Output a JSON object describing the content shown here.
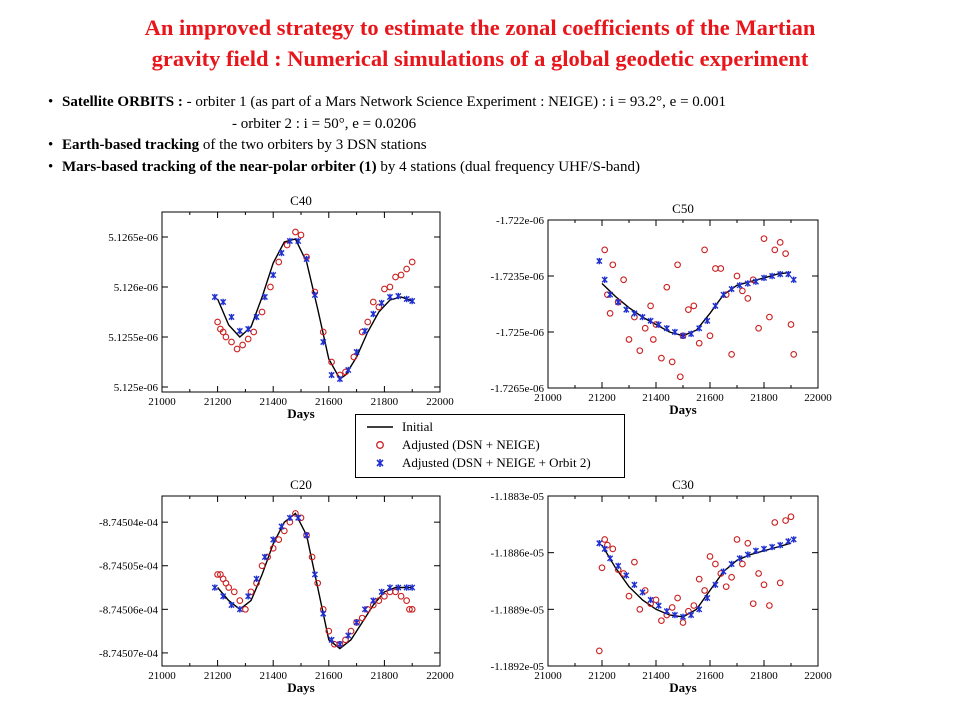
{
  "title": {
    "line1": "An improved strategy to estimate the zonal coefficients of the Martian",
    "line2": "gravity field : Numerical simulations of a global geodetic experiment"
  },
  "bullets": {
    "b1_bold": "Satellite ORBITS : ",
    "b1_text": "- orbiter 1 (as part of a Mars Network Science Experiment : NEIGE) : i = 93.2°, e = 0.001",
    "b1_line2": "- orbiter 2 : i  = 50°, e = 0.0206",
    "b2_bold": "Earth-based tracking",
    "b2_text": " of the two orbiters by 3 DSN stations",
    "b3_bold": "Mars-based tracking of the near-polar orbiter (1)",
    "b3_text": " by 4 stations (dual frequency UHF/S-band)"
  },
  "legend": {
    "initial": "Initial",
    "adjusted1": "Adjusted (DSN + NEIGE)",
    "adjusted2": "Adjusted (DSN + NEIGE + Orbit 2)"
  },
  "colors": {
    "title": "#e8151b",
    "initial": "#000000",
    "adjusted1": "#cc1f1f",
    "adjusted2": "#1f2fd0"
  },
  "chart_data": [
    {
      "type": "scatter",
      "title": "C40",
      "xlabel": "Days",
      "xlim": [
        21000,
        22000
      ],
      "xticks": [
        "21000",
        "21200",
        "21400",
        "21600",
        "21800",
        "22000"
      ],
      "ylim": [
        5.12495e-06,
        5.12675e-06
      ],
      "yticks": [
        {
          "v": 5.1265e-06,
          "label": "5.1265e-06"
        },
        {
          "v": 5.126e-06,
          "label": "5.126e-06"
        },
        {
          "v": 5.1255e-06,
          "label": "5.1255e-06"
        },
        {
          "v": 5.125e-06,
          "label": "5.125e-06"
        }
      ],
      "series": [
        {
          "name": "Initial",
          "style": "line",
          "x": [
            21200,
            21240,
            21280,
            21320,
            21360,
            21400,
            21440,
            21480,
            21520,
            21560,
            21600,
            21640,
            21660,
            21700,
            21740,
            21780,
            21820,
            21860,
            21900
          ],
          "y": [
            5.12588e-06,
            5.12562e-06,
            5.1255e-06,
            5.1256e-06,
            5.1259e-06,
            5.12624e-06,
            5.12645e-06,
            5.12648e-06,
            5.12625e-06,
            5.12578e-06,
            5.12528e-06,
            5.12508e-06,
            5.12512e-06,
            5.1253e-06,
            5.12555e-06,
            5.12575e-06,
            5.12587e-06,
            5.1259e-06,
            5.12586e-06
          ]
        },
        {
          "name": "Adjusted (DSN + NEIGE)",
          "style": "circle",
          "x": [
            21200,
            21210,
            21220,
            21230,
            21250,
            21270,
            21290,
            21310,
            21330,
            21360,
            21390,
            21420,
            21450,
            21480,
            21500,
            21520,
            21550,
            21580,
            21610,
            21640,
            21660,
            21690,
            21720,
            21740,
            21760,
            21780,
            21800,
            21820,
            21840,
            21860,
            21880,
            21900
          ],
          "y": [
            5.12565e-06,
            5.12558e-06,
            5.12555e-06,
            5.1255e-06,
            5.12545e-06,
            5.12538e-06,
            5.12542e-06,
            5.12548e-06,
            5.12555e-06,
            5.12575e-06,
            5.126e-06,
            5.12625e-06,
            5.12642e-06,
            5.12655e-06,
            5.12652e-06,
            5.1263e-06,
            5.12595e-06,
            5.12555e-06,
            5.12525e-06,
            5.12512e-06,
            5.12515e-06,
            5.1253e-06,
            5.12555e-06,
            5.12565e-06,
            5.12585e-06,
            5.1258e-06,
            5.12598e-06,
            5.126e-06,
            5.1261e-06,
            5.12612e-06,
            5.12618e-06,
            5.12625e-06
          ]
        },
        {
          "name": "Adjusted (DSN + NEIGE + Orbit 2)",
          "style": "star",
          "x": [
            21190,
            21220,
            21250,
            21280,
            21310,
            21340,
            21370,
            21400,
            21430,
            21460,
            21490,
            21520,
            21550,
            21580,
            21610,
            21640,
            21670,
            21700,
            21730,
            21760,
            21790,
            21820,
            21850,
            21880,
            21900
          ],
          "y": [
            5.1259e-06,
            5.12585e-06,
            5.1257e-06,
            5.12556e-06,
            5.12558e-06,
            5.1257e-06,
            5.1259e-06,
            5.12612e-06,
            5.12634e-06,
            5.12646e-06,
            5.12646e-06,
            5.12628e-06,
            5.12592e-06,
            5.12545e-06,
            5.12512e-06,
            5.12508e-06,
            5.12517e-06,
            5.12535e-06,
            5.12556e-06,
            5.12573e-06,
            5.12584e-06,
            5.1259e-06,
            5.12591e-06,
            5.12588e-06,
            5.12586e-06
          ]
        }
      ]
    },
    {
      "type": "scatter",
      "title": "C50",
      "xlabel": "Days",
      "xlim": [
        21000,
        22000
      ],
      "xticks": [
        "21000",
        "21200",
        "21400",
        "21600",
        "21800",
        "22000"
      ],
      "ylim": [
        -1.7265e-06,
        -1.722e-06
      ],
      "yticks": [
        {
          "v": -1.722e-06,
          "label": "-1.722e-06"
        },
        {
          "v": -1.7235e-06,
          "label": "-1.7235e-06"
        },
        {
          "v": -1.725e-06,
          "label": "-1.725e-06"
        },
        {
          "v": -1.7265e-06,
          "label": "-1.7265e-06"
        }
      ],
      "series": [
        {
          "name": "Initial",
          "style": "line",
          "x": [
            21200,
            21250,
            21300,
            21350,
            21400,
            21450,
            21500,
            21550,
            21600,
            21650,
            21700,
            21750,
            21800,
            21850,
            21900
          ],
          "y": [
            -1.7237e-06,
            -1.72405e-06,
            -1.72435e-06,
            -1.7246e-06,
            -1.7248e-06,
            -1.725e-06,
            -1.7251e-06,
            -1.72495e-06,
            -1.7245e-06,
            -1.724e-06,
            -1.72375e-06,
            -1.72365e-06,
            -1.72355e-06,
            -1.72345e-06,
            -1.7234e-06
          ]
        },
        {
          "name": "Adjusted (DSN + NEIGE)",
          "style": "circle",
          "x": [
            21210,
            21220,
            21230,
            21240,
            21260,
            21280,
            21300,
            21320,
            21340,
            21360,
            21380,
            21390,
            21400,
            21420,
            21440,
            21460,
            21480,
            21490,
            21500,
            21520,
            21540,
            21560,
            21580,
            21600,
            21620,
            21640,
            21660,
            21680,
            21700,
            21720,
            21740,
            21760,
            21780,
            21800,
            21820,
            21840,
            21860,
            21880,
            21900,
            21910
          ],
          "y": [
            -1.7228e-06,
            -1.724e-06,
            -1.7245e-06,
            -1.7232e-06,
            -1.7242e-06,
            -1.7236e-06,
            -1.7252e-06,
            -1.7246e-06,
            -1.7255e-06,
            -1.7249e-06,
            -1.7243e-06,
            -1.7252e-06,
            -1.7248e-06,
            -1.7257e-06,
            -1.7238e-06,
            -1.7258e-06,
            -1.7232e-06,
            -1.7262e-06,
            -1.7251e-06,
            -1.7244e-06,
            -1.7243e-06,
            -1.7253e-06,
            -1.7228e-06,
            -1.7251e-06,
            -1.7233e-06,
            -1.7233e-06,
            -1.724e-06,
            -1.7256e-06,
            -1.7235e-06,
            -1.7239e-06,
            -1.7241e-06,
            -1.7236e-06,
            -1.7249e-06,
            -1.7225e-06,
            -1.7246e-06,
            -1.7228e-06,
            -1.7226e-06,
            -1.7229e-06,
            -1.7248e-06,
            -1.7256e-06
          ]
        },
        {
          "name": "Adjusted (DSN + NEIGE + Orbit 2)",
          "style": "star",
          "x": [
            21190,
            21210,
            21230,
            21260,
            21290,
            21320,
            21350,
            21380,
            21410,
            21440,
            21470,
            21500,
            21530,
            21560,
            21590,
            21620,
            21650,
            21680,
            21710,
            21740,
            21770,
            21800,
            21830,
            21860,
            21890,
            21910
          ],
          "y": [
            -1.7231e-06,
            -1.7236e-06,
            -1.724e-06,
            -1.7242e-06,
            -1.7244e-06,
            -1.7245e-06,
            -1.7246e-06,
            -1.7247e-06,
            -1.7248e-06,
            -1.7249e-06,
            -1.725e-06,
            -1.7251e-06,
            -1.72505e-06,
            -1.7249e-06,
            -1.7247e-06,
            -1.7243e-06,
            -1.724e-06,
            -1.72385e-06,
            -1.72375e-06,
            -1.7237e-06,
            -1.72365e-06,
            -1.72355e-06,
            -1.7235e-06,
            -1.72345e-06,
            -1.72345e-06,
            -1.7236e-06
          ]
        }
      ]
    },
    {
      "type": "scatter",
      "title": "C20",
      "xlabel": "Days",
      "xlim": [
        21000,
        22000
      ],
      "xticks": [
        "21000",
        "21200",
        "21400",
        "21600",
        "21800",
        "22000"
      ],
      "ylim": [
        -0.0008745073,
        -0.0008745034
      ],
      "yticks": [
        {
          "v": -0.000874504,
          "label": "-8.74504e-04"
        },
        {
          "v": -0.000874505,
          "label": "-8.74505e-04"
        },
        {
          "v": -0.000874506,
          "label": "-8.74506e-04"
        },
        {
          "v": -0.000874507,
          "label": "-8.74507e-04"
        }
      ],
      "series": [
        {
          "name": "Initial",
          "style": "line",
          "x": [
            21200,
            21240,
            21280,
            21320,
            21360,
            21400,
            21440,
            21480,
            21520,
            21560,
            21600,
            21640,
            21680,
            21720,
            21760,
            21800,
            21840,
            21880,
            21900
          ],
          "y": [
            -0.0008745055,
            -0.0008745058,
            -0.000874506,
            -0.0008745058,
            -0.0008745052,
            -0.0008745045,
            -0.000874504,
            -0.0008745038,
            -0.0008745043,
            -0.0008745055,
            -0.0008745067,
            -0.0008745069,
            -0.0008745067,
            -0.0008745063,
            -0.0008745059,
            -0.0008745056,
            -0.0008745055,
            -0.0008745055,
            -0.0008745055
          ]
        },
        {
          "name": "Adjusted (DSN + NEIGE)",
          "style": "circle",
          "x": [
            21200,
            21210,
            21220,
            21230,
            21240,
            21260,
            21280,
            21300,
            21320,
            21340,
            21360,
            21380,
            21400,
            21420,
            21440,
            21460,
            21480,
            21500,
            21520,
            21540,
            21560,
            21580,
            21600,
            21620,
            21640,
            21660,
            21680,
            21700,
            21720,
            21740,
            21760,
            21780,
            21800,
            21820,
            21840,
            21860,
            21880,
            21890,
            21900
          ],
          "y": [
            -0.0008745052,
            -0.0008745052,
            -0.0008745053,
            -0.0008745054,
            -0.0008745055,
            -0.0008745056,
            -0.0008745058,
            -0.000874506,
            -0.0008745056,
            -0.0008745054,
            -0.000874505,
            -0.0008745048,
            -0.0008745046,
            -0.0008745044,
            -0.0008745042,
            -0.000874504,
            -0.0008745038,
            -0.0008745039,
            -0.0008745043,
            -0.0008745048,
            -0.0008745054,
            -0.000874506,
            -0.0008745065,
            -0.0008745068,
            -0.0008745068,
            -0.0008745067,
            -0.0008745065,
            -0.0008745063,
            -0.0008745062,
            -0.000874506,
            -0.0008745059,
            -0.0008745058,
            -0.0008745057,
            -0.0008745056,
            -0.0008745056,
            -0.0008745057,
            -0.0008745058,
            -0.000874506,
            -0.000874506
          ]
        },
        {
          "name": "Adjusted (DSN + NEIGE + Orbit 2)",
          "style": "star",
          "x": [
            21190,
            21220,
            21250,
            21280,
            21310,
            21340,
            21370,
            21400,
            21430,
            21460,
            21490,
            21520,
            21550,
            21580,
            21610,
            21640,
            21670,
            21700,
            21730,
            21760,
            21790,
            21820,
            21850,
            21880,
            21900
          ],
          "y": [
            -0.0008745055,
            -0.0008745057,
            -0.0008745059,
            -0.000874506,
            -0.0008745057,
            -0.0008745053,
            -0.0008745048,
            -0.0008745044,
            -0.0008745041,
            -0.0008745039,
            -0.0008745039,
            -0.0008745043,
            -0.0008745052,
            -0.0008745061,
            -0.0008745067,
            -0.0008745068,
            -0.0008745066,
            -0.0008745063,
            -0.000874506,
            -0.0008745058,
            -0.0008745056,
            -0.0008745055,
            -0.0008745055,
            -0.0008745055,
            -0.0008745055
          ]
        }
      ]
    },
    {
      "type": "scatter",
      "title": "C30",
      "xlabel": "Days",
      "xlim": [
        21000,
        22000
      ],
      "xticks": [
        "21000",
        "21200",
        "21400",
        "21600",
        "21800",
        "22000"
      ],
      "ylim": [
        -1.1892e-05,
        -1.1883e-05
      ],
      "yticks": [
        {
          "v": -1.1883e-05,
          "label": "-1.1883e-05"
        },
        {
          "v": -1.1886e-05,
          "label": "-1.1886e-05"
        },
        {
          "v": -1.1889e-05,
          "label": "-1.1889e-05"
        },
        {
          "v": -1.1892e-05,
          "label": "-1.1892e-05"
        }
      ],
      "series": [
        {
          "name": "Initial",
          "style": "line",
          "x": [
            21200,
            21250,
            21300,
            21350,
            21400,
            21450,
            21500,
            21550,
            21600,
            21650,
            21700,
            21750,
            21800,
            21850,
            21900
          ],
          "y": [
            -1.18856e-05,
            -1.18868e-05,
            -1.18878e-05,
            -1.18885e-05,
            -1.1889e-05,
            -1.18893e-05,
            -1.18894e-05,
            -1.1889e-05,
            -1.1888e-05,
            -1.1887e-05,
            -1.18864e-05,
            -1.18861e-05,
            -1.18859e-05,
            -1.18857e-05,
            -1.18855e-05
          ]
        },
        {
          "name": "Adjusted (DSN + NEIGE)",
          "style": "circle",
          "x": [
            21190,
            21200,
            21210,
            21220,
            21240,
            21260,
            21280,
            21300,
            21320,
            21340,
            21360,
            21380,
            21400,
            21420,
            21440,
            21460,
            21480,
            21500,
            21520,
            21540,
            21560,
            21580,
            21600,
            21620,
            21640,
            21660,
            21680,
            21700,
            21720,
            21740,
            21760,
            21780,
            21800,
            21820,
            21840,
            21860,
            21880,
            21900
          ],
          "y": [
            -1.18912e-05,
            -1.18868e-05,
            -1.18853e-05,
            -1.18856e-05,
            -1.18858e-05,
            -1.18869e-05,
            -1.18871e-05,
            -1.18883e-05,
            -1.18865e-05,
            -1.1889e-05,
            -1.1888e-05,
            -1.18887e-05,
            -1.18885e-05,
            -1.18896e-05,
            -1.18893e-05,
            -1.18889e-05,
            -1.18884e-05,
            -1.18897e-05,
            -1.18891e-05,
            -1.18888e-05,
            -1.18874e-05,
            -1.1888e-05,
            -1.18862e-05,
            -1.18866e-05,
            -1.18871e-05,
            -1.18878e-05,
            -1.18873e-05,
            -1.18853e-05,
            -1.18866e-05,
            -1.18855e-05,
            -1.18887e-05,
            -1.18871e-05,
            -1.18877e-05,
            -1.18888e-05,
            -1.18844e-05,
            -1.18876e-05,
            -1.18843e-05,
            -1.18841e-05
          ]
        },
        {
          "name": "Adjusted (DSN + NEIGE + Orbit 2)",
          "style": "star",
          "x": [
            21190,
            21210,
            21230,
            21260,
            21290,
            21320,
            21350,
            21380,
            21410,
            21440,
            21470,
            21500,
            21530,
            21560,
            21590,
            21620,
            21650,
            21680,
            21710,
            21740,
            21770,
            21800,
            21830,
            21860,
            21890,
            21910
          ],
          "y": [
            -1.18855e-05,
            -1.18858e-05,
            -1.18863e-05,
            -1.18867e-05,
            -1.18872e-05,
            -1.18877e-05,
            -1.18881e-05,
            -1.18885e-05,
            -1.18888e-05,
            -1.18891e-05,
            -1.18893e-05,
            -1.18894e-05,
            -1.18893e-05,
            -1.1889e-05,
            -1.18884e-05,
            -1.18877e-05,
            -1.1887e-05,
            -1.18866e-05,
            -1.18863e-05,
            -1.18861e-05,
            -1.18859e-05,
            -1.18858e-05,
            -1.18857e-05,
            -1.18856e-05,
            -1.18854e-05,
            -1.18853e-05
          ]
        }
      ]
    }
  ]
}
